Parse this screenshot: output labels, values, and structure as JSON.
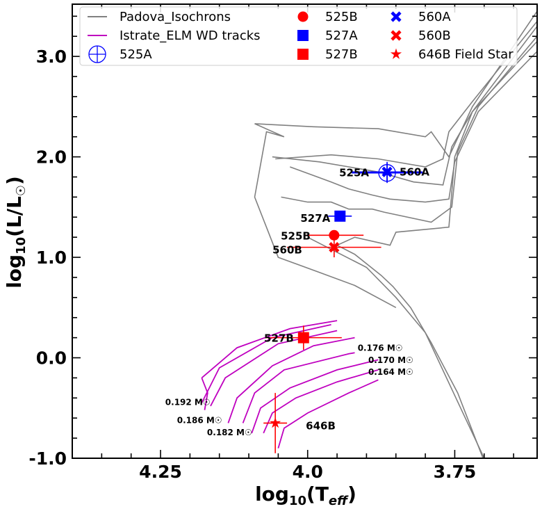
{
  "chart_data": {
    "type": "scatter",
    "xlabel": "log10(Teff)",
    "ylabel": "log10(L/L☉)",
    "xlim": [
      4.4,
      3.61
    ],
    "ylim": [
      -1.0,
      3.52
    ],
    "x_inverted": true,
    "xticks": [
      {
        "value": 4.25,
        "label": "4.25"
      },
      {
        "value": 4.0,
        "label": "4.0"
      },
      {
        "value": 3.75,
        "label": "3.75"
      }
    ],
    "yticks": [
      {
        "value": -1.0,
        "label": "-1.0"
      },
      {
        "value": 0.0,
        "label": "0.0"
      },
      {
        "value": 1.0,
        "label": "1.0"
      },
      {
        "value": 2.0,
        "label": "2.0"
      },
      {
        "value": 3.0,
        "label": "3.0"
      }
    ],
    "legend_position": "top",
    "legend": [
      {
        "label": "Padova_Isochrons",
        "marker": "line",
        "color": "#808080"
      },
      {
        "label": "Istrate_ELM WD tracks",
        "marker": "line",
        "color": "#bf00bf"
      },
      {
        "label": "525A",
        "marker": "circle-plus",
        "color": "#0000ff"
      },
      {
        "label": "525B",
        "marker": "circle",
        "color": "#ff0000"
      },
      {
        "label": "527A",
        "marker": "square",
        "color": "#0000ff"
      },
      {
        "label": "527B",
        "marker": "square",
        "color": "#ff0000"
      },
      {
        "label": "560A",
        "marker": "x",
        "color": "#0000ff"
      },
      {
        "label": "560B",
        "marker": "x",
        "color": "#ff0000"
      },
      {
        "label": "646B Field Star",
        "marker": "star",
        "color": "#ff0000"
      }
    ],
    "points": [
      {
        "name": "525A",
        "x": 3.865,
        "y": 1.84,
        "xerr": 0.06,
        "yerr": 0.1,
        "marker": "circle-plus",
        "color": "#0000ff",
        "label": "525A"
      },
      {
        "name": "560A",
        "x": 3.865,
        "y": 1.85,
        "xerr": 0.06,
        "yerr": 0.1,
        "marker": "x",
        "color": "#0000ff",
        "label": "560A"
      },
      {
        "name": "527A",
        "x": 3.945,
        "y": 1.41,
        "xerr": 0.02,
        "yerr": 0.05,
        "marker": "square",
        "color": "#0000ff",
        "label": "527A"
      },
      {
        "name": "525B",
        "x": 3.955,
        "y": 1.22,
        "xerr": 0.05,
        "yerr": 0.05,
        "marker": "circle",
        "color": "#ff0000",
        "label": "525B"
      },
      {
        "name": "560B",
        "x": 3.955,
        "y": 1.1,
        "xerr": 0.08,
        "yerr": 0.1,
        "marker": "x",
        "color": "#ff0000",
        "label": "560B"
      },
      {
        "name": "527B",
        "x": 4.007,
        "y": 0.2,
        "xerr": 0.065,
        "yerr": 0.12,
        "marker": "square",
        "color": "#ff0000",
        "label": "527B"
      },
      {
        "name": "646B",
        "x": 4.055,
        "y": -0.65,
        "xerr": 0.02,
        "yerr": 0.3,
        "marker": "star",
        "color": "#ff0000",
        "label": "646B"
      }
    ],
    "mass_labels": [
      {
        "text": "0.176 M☉",
        "x": 3.915,
        "y": 0.07
      },
      {
        "text": "0.170 M☉",
        "x": 3.897,
        "y": -0.05
      },
      {
        "text": "0.164 M☉",
        "x": 3.897,
        "y": -0.17
      },
      {
        "text": "0.192 M☉",
        "x": 4.242,
        "y": -0.47
      },
      {
        "text": "0.186 M☉",
        "x": 4.222,
        "y": -0.65
      },
      {
        "text": "0.182 M☉",
        "x": 4.171,
        "y": -0.77
      }
    ],
    "isochrones": [
      [
        [
          3.95,
          1.12
        ],
        [
          3.92,
          1.03
        ],
        [
          3.875,
          0.82
        ],
        [
          3.855,
          0.71
        ],
        [
          3.825,
          0.5
        ],
        [
          3.79,
          0.15
        ],
        [
          3.745,
          -0.35
        ],
        [
          3.702,
          -1.0
        ]
      ],
      [
        [
          3.95,
          1.12
        ],
        [
          3.92,
          1.2
        ],
        [
          3.86,
          1.12
        ],
        [
          3.85,
          1.25
        ],
        [
          3.76,
          1.3
        ],
        [
          3.75,
          2.0
        ],
        [
          3.72,
          2.45
        ],
        [
          3.61,
          3.15
        ]
      ],
      [
        [
          4.045,
          1.6
        ],
        [
          4.0,
          1.55
        ],
        [
          3.96,
          1.55
        ],
        [
          3.93,
          1.48
        ],
        [
          3.89,
          1.48
        ],
        [
          3.87,
          1.45
        ],
        [
          3.79,
          1.35
        ],
        [
          3.755,
          1.5
        ],
        [
          3.745,
          2.05
        ],
        [
          3.71,
          2.5
        ],
        [
          3.61,
          3.2
        ]
      ],
      [
        [
          4.03,
          1.9
        ],
        [
          3.96,
          1.75
        ],
        [
          3.93,
          1.68
        ],
        [
          3.89,
          1.62
        ],
        [
          3.86,
          1.58
        ],
        [
          3.8,
          1.55
        ],
        [
          3.76,
          1.58
        ],
        [
          3.75,
          1.95
        ],
        [
          3.71,
          2.45
        ],
        [
          3.61,
          3.05
        ]
      ],
      [
        [
          4.06,
          2.0
        ],
        [
          3.98,
          1.95
        ],
        [
          3.93,
          1.9
        ],
        [
          3.88,
          1.85
        ],
        [
          3.82,
          1.75
        ],
        [
          3.77,
          1.72
        ],
        [
          3.755,
          2.1
        ],
        [
          3.72,
          2.45
        ],
        [
          3.61,
          3.3
        ]
      ],
      [
        [
          4.055,
          1.98
        ],
        [
          3.96,
          2.02
        ],
        [
          3.88,
          1.98
        ],
        [
          3.8,
          1.9
        ],
        [
          3.77,
          1.98
        ],
        [
          3.76,
          2.25
        ],
        [
          3.72,
          2.55
        ],
        [
          3.61,
          3.35
        ]
      ],
      [
        [
          4.09,
          2.33
        ],
        [
          4.04,
          2.2
        ],
        [
          4.07,
          2.25
        ],
        [
          4.09,
          1.6
        ],
        [
          4.05,
          1.0
        ],
        [
          3.98,
          0.85
        ],
        [
          3.92,
          0.72
        ],
        [
          3.85,
          0.5
        ]
      ],
      [
        [
          4.09,
          2.33
        ],
        [
          3.99,
          2.3
        ],
        [
          3.88,
          2.28
        ],
        [
          3.8,
          2.2
        ],
        [
          3.79,
          2.25
        ],
        [
          3.76,
          2.0
        ],
        [
          3.72,
          2.5
        ],
        [
          3.61,
          3.45
        ]
      ],
      [
        [
          4.0,
          1.2
        ],
        [
          3.9,
          0.9
        ],
        [
          3.85,
          0.6
        ],
        [
          3.8,
          0.25
        ],
        [
          3.74,
          -0.5
        ],
        [
          3.7,
          -1.0
        ]
      ]
    ],
    "wd_tracks": [
      [
        [
          4.18,
          -0.2
        ],
        [
          4.17,
          -0.35
        ],
        [
          4.175,
          -0.52
        ]
      ],
      [
        [
          4.18,
          -0.2
        ],
        [
          4.12,
          0.1
        ],
        [
          4.03,
          0.29
        ],
        [
          3.95,
          0.37
        ]
      ],
      [
        [
          4.18,
          -0.45
        ],
        [
          4.15,
          -0.1
        ],
        [
          4.06,
          0.2
        ],
        [
          3.96,
          0.33
        ]
      ],
      [
        [
          4.165,
          -0.48
        ],
        [
          4.14,
          -0.2
        ],
        [
          4.05,
          0.14
        ],
        [
          3.95,
          0.27
        ]
      ],
      [
        [
          4.135,
          -0.65
        ],
        [
          4.12,
          -0.4
        ],
        [
          4.06,
          -0.08
        ],
        [
          3.99,
          0.12
        ],
        [
          3.92,
          0.2
        ]
      ],
      [
        [
          4.11,
          -0.65
        ],
        [
          4.09,
          -0.35
        ],
        [
          4.04,
          -0.12
        ],
        [
          3.93,
          0.04
        ],
        [
          3.92,
          0.05
        ]
      ],
      [
        [
          4.095,
          -0.75
        ],
        [
          4.08,
          -0.5
        ],
        [
          4.03,
          -0.3
        ],
        [
          3.95,
          -0.12
        ],
        [
          3.88,
          -0.02
        ]
      ],
      [
        [
          4.075,
          -0.75
        ],
        [
          4.06,
          -0.55
        ],
        [
          4.02,
          -0.4
        ],
        [
          3.95,
          -0.24
        ],
        [
          3.88,
          -0.12
        ]
      ],
      [
        [
          4.05,
          -0.9
        ],
        [
          4.04,
          -0.7
        ],
        [
          4.0,
          -0.55
        ],
        [
          3.93,
          -0.35
        ],
        [
          3.88,
          -0.22
        ]
      ]
    ]
  }
}
